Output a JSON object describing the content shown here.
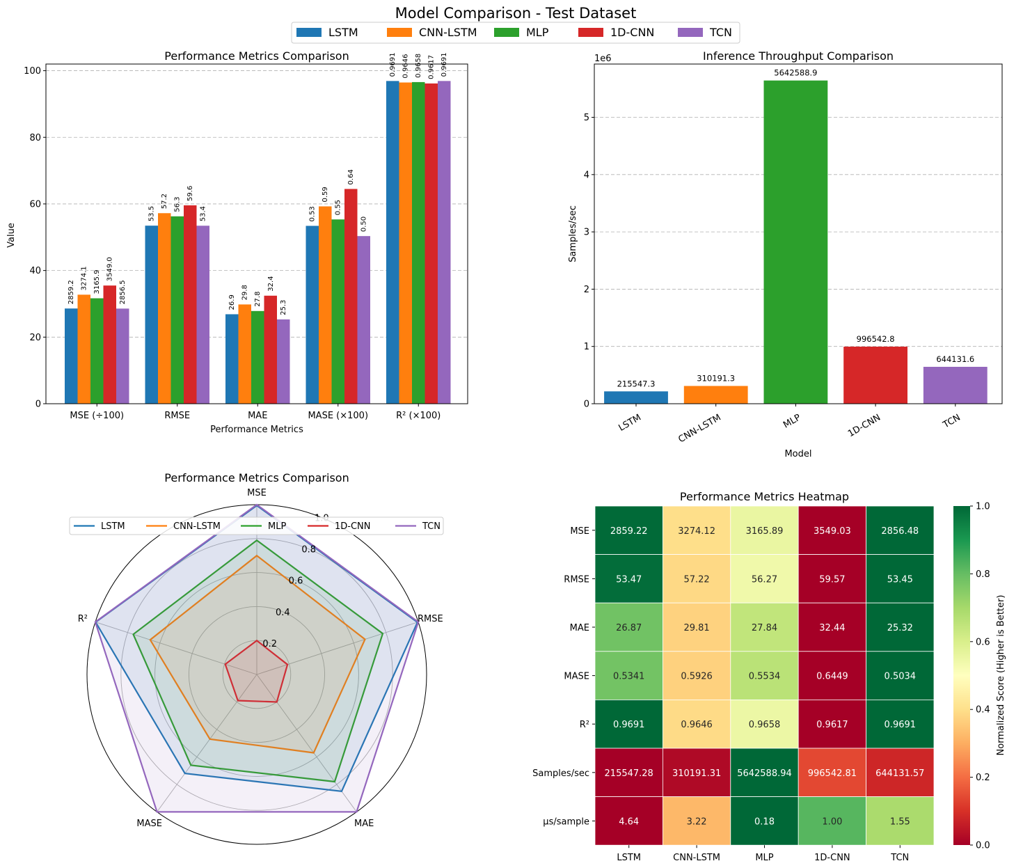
{
  "figure": {
    "title": "Model Comparison - Test Dataset",
    "legend": [
      "LSTM",
      "CNN-LSTM",
      "MLP",
      "1D-CNN",
      "TCN"
    ]
  },
  "colors": {
    "LSTM": "#1f77b4",
    "CNN-LSTM": "#ff7f0e",
    "MLP": "#2ca02c",
    "1D-CNN": "#d62728",
    "TCN": "#9467bd"
  },
  "chart_data": [
    {
      "id": "bars",
      "type": "bar",
      "title": "Performance Metrics Comparison",
      "xlabel": "Performance Metrics",
      "ylabel": "Value",
      "ylim": [
        0,
        102
      ],
      "yticks": [
        0,
        20,
        40,
        60,
        80,
        100
      ],
      "grid": "y",
      "categories": [
        "MSE (÷100)",
        "RMSE",
        "MAE",
        "MASE (×100)",
        "R² (×100)"
      ],
      "series": [
        {
          "name": "LSTM",
          "values": [
            28.592,
            53.47,
            26.87,
            53.41,
            96.91
          ],
          "labels": [
            "2859.2",
            "53.5",
            "26.9",
            "0.53",
            "0.9691"
          ]
        },
        {
          "name": "CNN-LSTM",
          "values": [
            32.741,
            57.22,
            29.81,
            59.26,
            96.46
          ],
          "labels": [
            "3274.1",
            "57.2",
            "29.8",
            "0.59",
            "0.9646"
          ]
        },
        {
          "name": "MLP",
          "values": [
            31.659,
            56.27,
            27.84,
            55.34,
            96.58
          ],
          "labels": [
            "3165.9",
            "56.3",
            "27.8",
            "0.55",
            "0.9658"
          ]
        },
        {
          "name": "1D-CNN",
          "values": [
            35.49,
            59.57,
            32.44,
            64.49,
            96.17
          ],
          "labels": [
            "3549.0",
            "59.6",
            "32.4",
            "0.64",
            "0.9617"
          ]
        },
        {
          "name": "TCN",
          "values": [
            28.565,
            53.45,
            25.32,
            50.34,
            96.91
          ],
          "labels": [
            "2856.5",
            "53.4",
            "25.3",
            "0.50",
            "0.9691"
          ]
        }
      ]
    },
    {
      "id": "throughput",
      "type": "bar",
      "title": "Inference Throughput Comparison",
      "xlabel": "Model",
      "ylabel": "Samples/sec",
      "scale_label": "1e6",
      "ylim": [
        0,
        5.93
      ],
      "yticks": [
        0,
        1,
        2,
        3,
        4,
        5
      ],
      "grid": "y",
      "categories": [
        "LSTM",
        "CNN-LSTM",
        "MLP",
        "1D-CNN",
        "TCN"
      ],
      "values": [
        215547.3,
        310191.3,
        5642588.9,
        996542.8,
        644131.6
      ],
      "labels": [
        "215547.3",
        "310191.3",
        "5642588.9",
        "996542.8",
        "644131.6"
      ]
    },
    {
      "id": "radar",
      "type": "radar",
      "title": "Performance Metrics Comparison",
      "axes": [
        "MSE",
        "RMSE",
        "MAE",
        "MASE",
        "R²"
      ],
      "rticks": [
        "0.2",
        "0.4",
        "0.6",
        "0.8",
        "1.0"
      ],
      "rlim": [
        0,
        1.0
      ],
      "series": [
        {
          "name": "LSTM",
          "values": [
            0.995,
            0.995,
            0.85,
            0.72,
            0.998
          ]
        },
        {
          "name": "CNN-LSTM",
          "values": [
            0.7,
            0.67,
            0.57,
            0.47,
            0.66
          ]
        },
        {
          "name": "MLP",
          "values": [
            0.79,
            0.78,
            0.78,
            0.66,
            0.765
          ]
        },
        {
          "name": "1D-CNN",
          "values": [
            0.2,
            0.19,
            0.2,
            0.19,
            0.195
          ]
        },
        {
          "name": "TCN",
          "values": [
            1.0,
            1.0,
            1.0,
            1.0,
            1.0
          ]
        }
      ]
    },
    {
      "id": "heatmap",
      "type": "heatmap",
      "title": "Performance Metrics Heatmap",
      "colorbar_label": "Normalized Score (Higher is Better)",
      "colorbar_ticks": [
        "0.0",
        "0.2",
        "0.4",
        "0.6",
        "0.8",
        "1.0"
      ],
      "columns": [
        "LSTM",
        "CNN-LSTM",
        "MLP",
        "1D-CNN",
        "TCN"
      ],
      "rows": [
        "MSE",
        "RMSE",
        "MAE",
        "MASE",
        "R²",
        "Samples/sec",
        "µs/sample"
      ],
      "cells": [
        [
          "2859.22",
          "3274.12",
          "3165.89",
          "3549.03",
          "2856.48"
        ],
        [
          "53.47",
          "57.22",
          "56.27",
          "59.57",
          "53.45"
        ],
        [
          "26.87",
          "29.81",
          "27.84",
          "32.44",
          "25.32"
        ],
        [
          "0.5341",
          "0.5926",
          "0.5534",
          "0.6449",
          "0.5034"
        ],
        [
          "0.9691",
          "0.9646",
          "0.9658",
          "0.9617",
          "0.9691"
        ],
        [
          "215547.28",
          "310191.31",
          "5642588.94",
          "996542.81",
          "644131.57"
        ],
        [
          "4.64",
          "3.22",
          "0.18",
          "1.00",
          "1.55"
        ]
      ],
      "scores": [
        [
          0.996,
          0.398,
          0.555,
          0.0,
          1.0
        ],
        [
          0.99,
          0.385,
          0.54,
          0.0,
          1.0
        ],
        [
          0.783,
          0.371,
          0.647,
          0.0,
          1.0
        ],
        [
          0.78,
          0.37,
          0.66,
          0.0,
          1.0
        ],
        [
          1.0,
          0.39,
          0.55,
          0.0,
          1.0
        ],
        [
          0.0,
          0.02,
          1.0,
          0.14,
          0.08
        ],
        [
          0.0,
          0.32,
          1.0,
          0.82,
          0.69
        ]
      ]
    }
  ]
}
